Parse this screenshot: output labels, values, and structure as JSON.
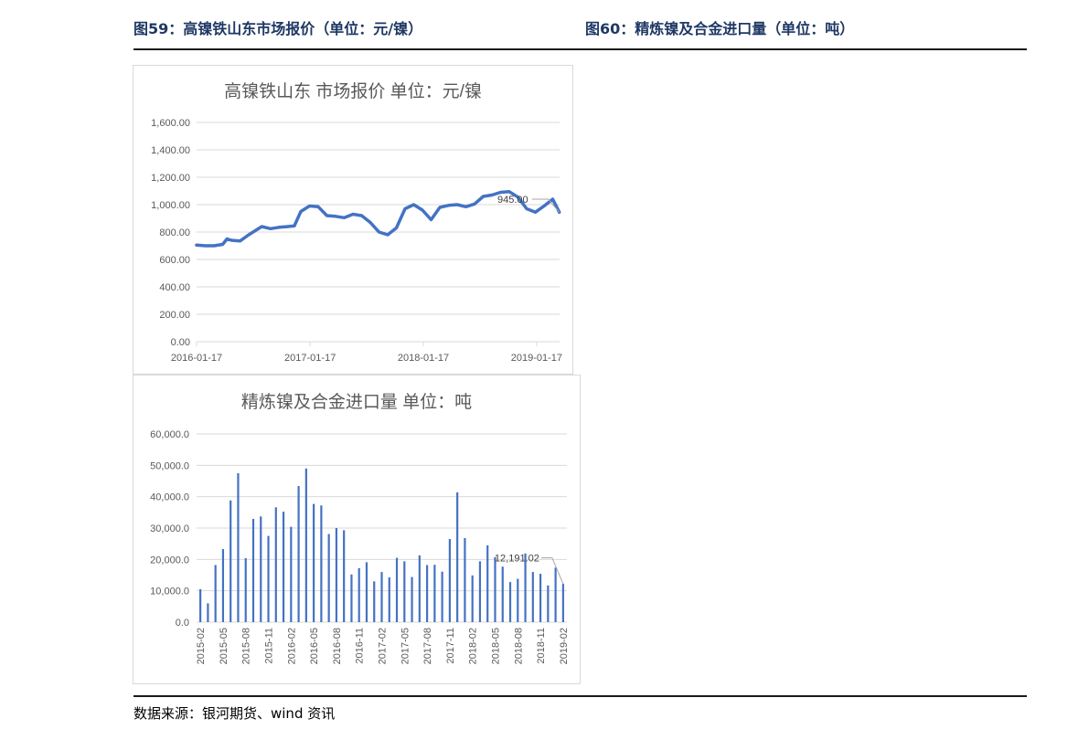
{
  "figures": {
    "fig59_title": "图59：高镍铁山东市场报价（单位：元/镍）",
    "fig60_title": "图60：精炼镍及合金进口量（单位：吨）"
  },
  "source": "数据来源：银河期货、wind 资讯",
  "colors": {
    "series": "#4472c4",
    "grid": "#d9d9d9",
    "axis_text": "#595959",
    "title_text": "#595959",
    "header_text": "#1f3864"
  },
  "chart_data": [
    {
      "type": "line",
      "title": "高镍铁山东 市场报价      单位：元/镍",
      "x_tick_labels": [
        "2016-01-17",
        "2017-01-17",
        "2018-01-17",
        "2019-01-17"
      ],
      "x_range": [
        "2016-01-17",
        "2019-04-01"
      ],
      "ylim": [
        0,
        1600
      ],
      "y_tick_labels": [
        "0.00",
        "200.00",
        "400.00",
        "600.00",
        "800.00",
        "1,000.00",
        "1,200.00",
        "1,400.00",
        "1,600.00"
      ],
      "grid": true,
      "data_label": "945.00",
      "series": [
        {
          "x": [
            "2016-01-17",
            "2016-02-14",
            "2016-03-13",
            "2016-04-10",
            "2016-04-24",
            "2016-05-08",
            "2016-06-05",
            "2016-07-03",
            "2016-08-14",
            "2016-09-11",
            "2016-10-09",
            "2016-11-06",
            "2016-11-27",
            "2016-12-18",
            "2017-01-15",
            "2017-02-12",
            "2017-03-12",
            "2017-04-09",
            "2017-05-07",
            "2017-06-04",
            "2017-07-02",
            "2017-07-30",
            "2017-08-27",
            "2017-09-24",
            "2017-10-22",
            "2017-11-19",
            "2017-12-17",
            "2018-01-14",
            "2018-02-11",
            "2018-03-11",
            "2018-04-08",
            "2018-05-06",
            "2018-06-03",
            "2018-07-01",
            "2018-07-29",
            "2018-08-26",
            "2018-09-23",
            "2018-10-21",
            "2018-11-18",
            "2018-12-16",
            "2019-01-13",
            "2019-02-10",
            "2019-03-10",
            "2019-03-31"
          ],
          "values": [
            705,
            700,
            700,
            710,
            750,
            740,
            735,
            780,
            840,
            825,
            835,
            840,
            845,
            950,
            990,
            985,
            920,
            915,
            905,
            930,
            920,
            870,
            800,
            780,
            830,
            970,
            1000,
            960,
            890,
            980,
            995,
            1000,
            985,
            1005,
            1060,
            1070,
            1090,
            1095,
            1055,
            970,
            945,
            990,
            1040,
            945
          ]
        }
      ]
    },
    {
      "type": "bar",
      "title": "精炼镍及合金进口量      单位：吨",
      "categories": [
        "2015-02",
        "2015-03",
        "2015-04",
        "2015-05",
        "2015-06",
        "2015-07",
        "2015-08",
        "2015-09",
        "2015-10",
        "2015-11",
        "2015-12",
        "2016-01",
        "2016-02",
        "2016-03",
        "2016-04",
        "2016-05",
        "2016-06",
        "2016-07",
        "2016-08",
        "2016-09",
        "2016-10",
        "2016-11",
        "2016-12",
        "2017-01",
        "2017-02",
        "2017-03",
        "2017-04",
        "2017-05",
        "2017-06",
        "2017-07",
        "2017-08",
        "2017-09",
        "2017-10",
        "2017-11",
        "2017-12",
        "2018-01",
        "2018-02",
        "2018-03",
        "2018-04",
        "2018-05",
        "2018-06",
        "2018-07",
        "2018-08",
        "2018-09",
        "2018-10",
        "2018-11",
        "2018-12",
        "2019-01",
        "2019-02"
      ],
      "x_tick_labels": [
        "2015-02",
        "2015-05",
        "2015-08",
        "2015-11",
        "2016-02",
        "2016-05",
        "2016-08",
        "2016-11",
        "2017-02",
        "2017-05",
        "2017-08",
        "2017-11",
        "2018-02",
        "2018-05",
        "2018-08",
        "2018-11",
        "2019-02"
      ],
      "ylim": [
        0,
        60000
      ],
      "y_tick_labels": [
        "0.0",
        "10,000.0",
        "20,000.0",
        "30,000.0",
        "40,000.0",
        "50,000.0",
        "60,000.0"
      ],
      "grid": true,
      "data_label": "12,191.02",
      "series": [
        {
          "values": [
            10500,
            6000,
            18200,
            23300,
            38800,
            47500,
            20400,
            32900,
            33700,
            27500,
            36600,
            35200,
            30400,
            43400,
            49000,
            37700,
            37200,
            28100,
            30000,
            29300,
            15200,
            17200,
            19100,
            13000,
            16000,
            14300,
            20500,
            19400,
            14400,
            21300,
            18200,
            18300,
            16100,
            26500,
            41400,
            26800,
            14900,
            19400,
            24500,
            20700,
            17700,
            12800,
            13800,
            21900,
            16000,
            15400,
            11700,
            17400,
            12191.02
          ]
        }
      ]
    }
  ]
}
